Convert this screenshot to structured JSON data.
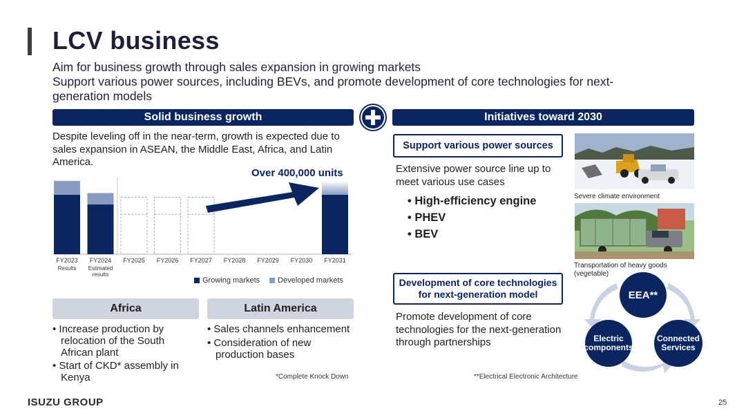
{
  "title": "LCV business",
  "subtitle_lines": [
    "Aim for business growth through sales expansion in growing markets",
    "Support various power sources, including BEVs, and promote development of core technologies for next-generation models"
  ],
  "left": {
    "band": "Solid business growth",
    "description": "Despite leveling off in the near-term, growth is expected due to sales expansion in ASEAN, the Middle East, Africa, and Latin America.",
    "callout": "Over 400,000 units"
  },
  "chart_data": {
    "type": "bar",
    "categories": [
      "FY2023",
      "FY2024",
      "FY2025",
      "FY2026",
      "FY2027",
      "FY2028",
      "FY2029",
      "FY2030",
      "FY2031"
    ],
    "category_sublabels": [
      "Results",
      "Estimated results",
      "",
      "",
      "",
      "",
      "",
      "",
      ""
    ],
    "series": [
      {
        "name": "Growing markets",
        "color": "#0a2560",
        "values": [
          0.73,
          0.61,
          null,
          null,
          null,
          null,
          null,
          null,
          0.73
        ]
      },
      {
        "name": "Developed markets",
        "color": "#8a9cc1",
        "values": [
          0.17,
          0.14,
          null,
          null,
          null,
          null,
          null,
          null,
          0.17
        ]
      }
    ],
    "projected_outline_totals": [
      null,
      null,
      0.7,
      0.7,
      0.7,
      null,
      null,
      null,
      null
    ],
    "ylim": [
      0,
      1
    ],
    "legend_position": "bottom-right",
    "grid": false
  },
  "africa": {
    "heading": "Africa",
    "bullets": [
      "Increase production by relocation of the South African plant",
      "Start of CKD* assembly in Kenya"
    ]
  },
  "latin_america": {
    "heading": "Latin America",
    "bullets": [
      "Sales channels enhancement",
      "Consideration of new production bases"
    ],
    "footnote": "*Complete Knock Down"
  },
  "right": {
    "band": "Initiatives toward 2030",
    "power_box": "Support various power sources",
    "power_text": "Extensive power source line up to meet various use cases",
    "power_bullets": [
      "High-efficiency engine",
      "PHEV",
      "BEV"
    ],
    "photo1_caption": "Severe climate environment",
    "photo2_caption": "Transportation of heavy goods (vegetable)",
    "core_box": "Development of core technologies for next-generation model",
    "core_text": "Promote development of core technologies for the next-generation through partnerships",
    "cycle": {
      "top": "EEA**",
      "left": "Electric components",
      "right": "Connected Services"
    },
    "footnote": "**Electrical Electronic Architecture"
  },
  "footer": {
    "brand": "ISUZU GROUP",
    "page": "25"
  },
  "colors": {
    "navy": "#0a2560",
    "light_blue": "#8a9cc1",
    "grey_head": "#d0d4dd",
    "cycle_arrow": "#c9d1e3"
  },
  "icons": [
    "plus-circle-icon",
    "cycle-arrow-icon"
  ]
}
